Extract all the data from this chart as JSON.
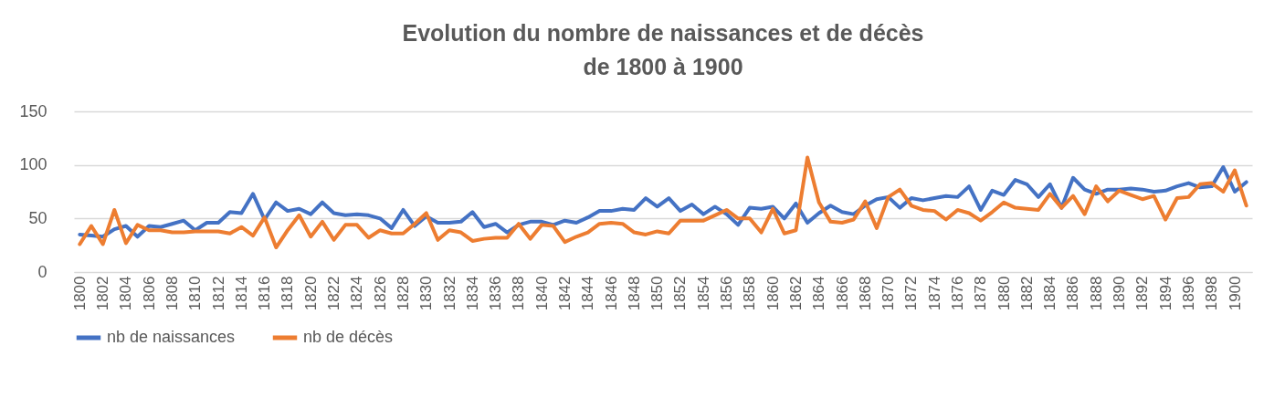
{
  "chart_data": {
    "type": "line",
    "title": "Evolution du nombre de naissances et de décès\nde 1800 à 1900",
    "categories": [
      "1800",
      null,
      "1802",
      null,
      "1804",
      null,
      "1806",
      null,
      "1808",
      null,
      "1810",
      null,
      "1812",
      null,
      "1814",
      null,
      "1816",
      null,
      "1818",
      null,
      "1820",
      null,
      "1822",
      null,
      "1824",
      null,
      "1826",
      null,
      "1828",
      null,
      "1830",
      null,
      "1832",
      null,
      "1834",
      null,
      "1836",
      null,
      "1838",
      null,
      "1840",
      null,
      "1842",
      null,
      "1844",
      null,
      "1846",
      null,
      "1848",
      null,
      "1850",
      null,
      "1852",
      null,
      "1854",
      null,
      "1856",
      null,
      "1858",
      null,
      "1860",
      null,
      "1862",
      null,
      "1864",
      null,
      "1866",
      null,
      "1868",
      null,
      "1870",
      null,
      "1872",
      null,
      "1874",
      null,
      "1876",
      null,
      "1878",
      null,
      "1880",
      null,
      "1882",
      null,
      "1884",
      null,
      "1886",
      null,
      "1888",
      null,
      "1890",
      null,
      "1892",
      null,
      "1894",
      null,
      "1896",
      null,
      "1898",
      null,
      "1900",
      null
    ],
    "series": [
      {
        "name": "nb de naissances",
        "color": "#4472c4",
        "values": [
          35,
          34,
          33,
          40,
          43,
          33,
          43,
          42,
          45,
          48,
          39,
          46,
          46,
          56,
          55,
          73,
          49,
          65,
          57,
          59,
          54,
          65,
          55,
          53,
          54,
          53,
          50,
          41,
          58,
          43,
          52,
          46,
          46,
          47,
          56,
          42,
          45,
          37,
          44,
          47,
          47,
          44,
          48,
          46,
          51,
          57,
          57,
          59,
          58,
          69,
          61,
          69,
          57,
          63,
          54,
          61,
          54,
          44,
          60,
          59,
          61,
          50,
          64,
          46,
          55,
          62,
          56,
          54,
          62,
          68,
          70,
          60,
          69,
          67,
          69,
          71,
          70,
          80,
          58,
          76,
          72,
          86,
          82,
          70,
          82,
          60,
          88,
          77,
          73,
          77,
          77,
          78,
          77,
          75,
          76,
          80,
          83,
          79,
          80,
          98,
          75,
          84
        ]
      },
      {
        "name": "nb de décès",
        "color": "#ed7d31",
        "values": [
          26,
          43,
          26,
          58,
          27,
          44,
          39,
          39,
          37,
          37,
          38,
          38,
          38,
          36,
          42,
          34,
          51,
          23,
          39,
          53,
          33,
          47,
          30,
          44,
          44,
          32,
          39,
          36,
          36,
          45,
          55,
          30,
          39,
          37,
          29,
          31,
          32,
          32,
          45,
          31,
          44,
          43,
          28,
          33,
          37,
          45,
          46,
          45,
          37,
          35,
          38,
          36,
          48,
          48,
          48,
          53,
          58,
          50,
          50,
          37,
          59,
          36,
          39,
          107,
          65,
          47,
          46,
          49,
          66,
          41,
          70,
          77,
          62,
          58,
          57,
          49,
          58,
          55,
          48,
          56,
          65,
          60,
          59,
          58,
          73,
          60,
          71,
          54,
          80,
          66,
          76,
          72,
          68,
          71,
          49,
          69,
          70,
          82,
          83,
          75,
          95,
          62
        ]
      }
    ],
    "ylim": [
      0,
      150
    ],
    "yticks": [
      0,
      50,
      100,
      150
    ],
    "grid": "y",
    "legend": "bottom"
  }
}
